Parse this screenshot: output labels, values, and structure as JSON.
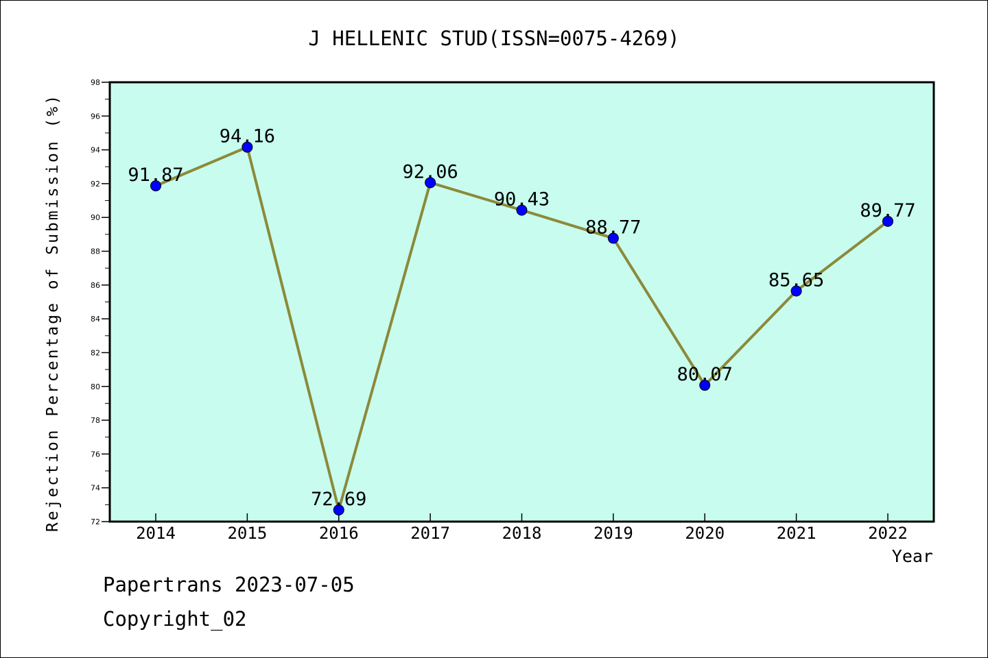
{
  "chart_data": {
    "type": "line",
    "title": "J HELLENIC STUD(ISSN=0075-4269)",
    "xlabel": "Year",
    "ylabel": "Rejection Percentage of Submission (%)",
    "categories": [
      "2014",
      "2015",
      "2016",
      "2017",
      "2018",
      "2019",
      "2020",
      "2021",
      "2022"
    ],
    "series": [
      {
        "values": [
          91.87,
          94.16,
          72.69,
          92.06,
          90.43,
          88.77,
          80.07,
          85.65,
          89.77
        ]
      }
    ],
    "data_labels": [
      "91.87",
      "94.16",
      "72.69",
      "92.06",
      "90.43",
      "88.77",
      "80.07",
      "85.65",
      "89.77"
    ],
    "ylim": [
      72,
      98
    ],
    "yticks": [
      72,
      74,
      76,
      78,
      80,
      82,
      84,
      86,
      88,
      90,
      92,
      94,
      96,
      98
    ],
    "grid": false,
    "plot_background": "#c8fcee",
    "line_color": "#8b8a3a",
    "marker_color": "#0000ff"
  },
  "footer": {
    "line1": "Papertrans 2023-07-05",
    "line2": "Copyright_02"
  }
}
